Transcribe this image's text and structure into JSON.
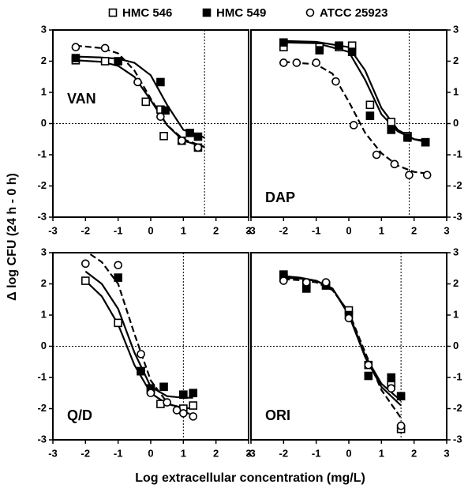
{
  "figure": {
    "xlabel": "Log extracellular concentration (mg/L)",
    "ylabel": "Δ log CFU (24 h - 0 h)"
  },
  "chart_data": [
    {
      "type": "scatter",
      "label": "VAN",
      "xlim": [
        -3,
        3
      ],
      "ylim": [
        -3,
        3
      ],
      "xticks": [
        -3,
        -2,
        -1,
        0,
        1,
        2,
        3
      ],
      "yticks": [
        -3,
        -2,
        -1,
        0,
        1,
        2,
        3
      ],
      "hline": 0,
      "vline": 1.65,
      "series": [
        {
          "name": "HMC 546",
          "marker": "open-square",
          "color": "#000000",
          "dashed": false,
          "x": [
            -2.3,
            -1.4,
            -0.15,
            0.3,
            0.4,
            0.95,
            1.45
          ],
          "values": [
            2.03,
            2.0,
            0.7,
            0.45,
            -0.4,
            -0.55,
            -0.77
          ],
          "fit_x": [
            -2.3,
            -1.5,
            -1,
            -0.5,
            0,
            0.5,
            1,
            1.65
          ],
          "fit_values": [
            2.03,
            1.98,
            1.85,
            1.5,
            0.75,
            -0.05,
            -0.55,
            -0.75
          ]
        },
        {
          "name": "HMC 549",
          "marker": "filled-square",
          "color": "#000000",
          "dashed": false,
          "x": [
            -2.3,
            -1,
            0.3,
            0.45,
            1.2,
            1.45
          ],
          "values": [
            2.1,
            2.0,
            1.33,
            0.42,
            -0.3,
            -0.42
          ],
          "fit_x": [
            -2.3,
            -1.5,
            -1,
            -0.5,
            0,
            0.5,
            1,
            1.65
          ],
          "fit_values": [
            2.15,
            2.12,
            2.08,
            1.95,
            1.55,
            0.6,
            -0.2,
            -0.45
          ]
        },
        {
          "name": "ATCC 25923",
          "marker": "open-circle",
          "color": "#000000",
          "dashed": true,
          "x": [
            -2.3,
            -1.4,
            -0.4,
            0.3,
            0.95,
            1.45
          ],
          "values": [
            2.45,
            2.42,
            1.33,
            0.22,
            -0.55,
            -0.77
          ],
          "fit_x": [
            -2.3,
            -1.5,
            -1,
            -0.5,
            0,
            0.5,
            1,
            1.65
          ],
          "fit_values": [
            2.5,
            2.42,
            2.25,
            1.7,
            0.8,
            -0.05,
            -0.5,
            -0.75
          ]
        }
      ]
    },
    {
      "type": "scatter",
      "label": "DAP",
      "xlim": [
        -3,
        3
      ],
      "ylim": [
        -3,
        3
      ],
      "xticks": [
        -3,
        -2,
        -1,
        0,
        1,
        2,
        3
      ],
      "yticks": [
        -3,
        -2,
        -1,
        0,
        1,
        2,
        3
      ],
      "hline": 0,
      "vline": 1.85,
      "series": [
        {
          "name": "HMC 546",
          "marker": "open-square",
          "color": "#000000",
          "dashed": false,
          "x": [
            -2,
            -0.9,
            -0.3,
            0.1,
            0.65,
            1.3,
            1.8,
            2.35
          ],
          "values": [
            2.45,
            2.45,
            2.45,
            2.5,
            0.6,
            0.05,
            -0.4,
            -0.6
          ],
          "fit_x": [
            -2,
            -1,
            0,
            0.5,
            1,
            1.5,
            2,
            2.4
          ],
          "fit_values": [
            2.6,
            2.58,
            2.3,
            1.4,
            0.3,
            -0.25,
            -0.5,
            -0.55
          ]
        },
        {
          "name": "HMC 549",
          "marker": "filled-square",
          "color": "#000000",
          "dashed": false,
          "x": [
            -2,
            -0.9,
            -0.3,
            0.1,
            0.65,
            1.3,
            1.8,
            2.35
          ],
          "values": [
            2.6,
            2.35,
            2.5,
            2.3,
            0.25,
            -0.2,
            -0.45,
            -0.6
          ],
          "fit_x": [
            -2,
            -1,
            0,
            0.5,
            1,
            1.5,
            2,
            2.4
          ],
          "fit_values": [
            2.65,
            2.62,
            2.45,
            1.7,
            0.5,
            -0.2,
            -0.5,
            -0.6
          ]
        },
        {
          "name": "ATCC 25923",
          "marker": "open-circle",
          "color": "#000000",
          "dashed": true,
          "x": [
            -2,
            -1.6,
            -1,
            -0.4,
            0.15,
            0.85,
            1.4,
            1.85,
            2.4
          ],
          "values": [
            1.95,
            1.95,
            1.95,
            1.35,
            -0.05,
            -1.0,
            -1.3,
            -1.65,
            -1.65
          ],
          "fit_x": [
            -2,
            -1,
            -0.5,
            0,
            0.5,
            1,
            1.5,
            2,
            2.4
          ],
          "fit_values": [
            1.98,
            1.9,
            1.6,
            0.7,
            -0.3,
            -0.95,
            -1.35,
            -1.55,
            -1.6
          ]
        }
      ]
    },
    {
      "type": "scatter",
      "label": "Q/D",
      "xlim": [
        -3,
        3
      ],
      "ylim": [
        -3,
        3
      ],
      "xticks": [
        -3,
        -2,
        -1,
        0,
        1,
        2,
        3
      ],
      "yticks": [
        -3,
        -2,
        -1,
        0,
        1,
        2,
        3
      ],
      "hline": 0,
      "vline": 1.0,
      "series": [
        {
          "name": "HMC 546",
          "marker": "open-square",
          "color": "#000000",
          "dashed": false,
          "x": [
            -2,
            -1,
            -0.3,
            0,
            0.3,
            1,
            1.3
          ],
          "values": [
            2.1,
            0.75,
            -0.8,
            -1.4,
            -1.85,
            -2.0,
            -1.9
          ],
          "fit_x": [
            -2,
            -1.5,
            -1,
            -0.5,
            0,
            0.5,
            1,
            1.3
          ],
          "fit_values": [
            2.1,
            1.6,
            0.7,
            -0.6,
            -1.5,
            -1.85,
            -1.97,
            -2.0
          ]
        },
        {
          "name": "HMC 549",
          "marker": "filled-square",
          "color": "#000000",
          "dashed": false,
          "x": [
            -1,
            -0.3,
            0,
            0.4,
            1,
            1.3
          ],
          "values": [
            2.2,
            -0.8,
            -1.35,
            -1.3,
            -1.55,
            -1.5
          ],
          "fit_x": [
            -2,
            -1.5,
            -1,
            -0.5,
            0,
            0.5,
            1,
            1.3
          ],
          "fit_values": [
            2.4,
            2.0,
            1.2,
            -0.2,
            -1.3,
            -1.6,
            -1.65,
            -1.65
          ]
        },
        {
          "name": "ATCC 25923",
          "marker": "open-circle",
          "color": "#000000",
          "dashed": true,
          "x": [
            -2,
            -1,
            -0.3,
            0,
            0.5,
            0.8,
            1,
            1.3
          ],
          "values": [
            2.65,
            2.6,
            -0.25,
            -1.5,
            -1.8,
            -2.05,
            -2.15,
            -2.25
          ],
          "fit_x": [
            -1.85,
            -1.5,
            -1,
            -0.5,
            0,
            0.5,
            1,
            1.3
          ],
          "fit_values": [
            2.95,
            2.7,
            2.0,
            0.4,
            -1.1,
            -1.8,
            -2.1,
            -2.2
          ]
        }
      ]
    },
    {
      "type": "scatter",
      "label": "ORI",
      "xlim": [
        -3,
        3
      ],
      "ylim": [
        -3,
        3
      ],
      "xticks": [
        -3,
        -2,
        -1,
        0,
        1,
        2,
        3
      ],
      "yticks": [
        -3,
        -2,
        -1,
        0,
        1,
        2,
        3
      ],
      "hline": 0,
      "vline": 1.6,
      "series": [
        {
          "name": "HMC 546",
          "marker": "open-square",
          "color": "#000000",
          "dashed": false,
          "x": [
            -2,
            -1.3,
            -0.7,
            0,
            0.6,
            1.3,
            1.6
          ],
          "values": [
            2.2,
            2.0,
            1.95,
            1.15,
            -0.6,
            -1.25,
            -2.65
          ],
          "fit_x": [
            -2,
            -1.5,
            -1,
            -0.5,
            0,
            0.5,
            1,
            1.6
          ],
          "fit_values": [
            2.2,
            2.17,
            2.1,
            1.85,
            1.0,
            -0.35,
            -1.3,
            -1.9
          ]
        },
        {
          "name": "HMC 549",
          "marker": "filled-square",
          "color": "#000000",
          "dashed": false,
          "x": [
            -2,
            -1.3,
            -0.7,
            0,
            0.6,
            1.3,
            1.6
          ],
          "values": [
            2.3,
            1.85,
            1.95,
            1.0,
            -0.95,
            -1.0,
            -1.6
          ],
          "fit_x": [
            -2,
            -1.5,
            -1,
            -0.5,
            0,
            0.5,
            1,
            1.6
          ],
          "fit_values": [
            2.25,
            2.2,
            2.1,
            1.85,
            1.05,
            -0.3,
            -1.2,
            -1.75
          ]
        },
        {
          "name": "ATCC 25923",
          "marker": "open-circle",
          "color": "#000000",
          "dashed": true,
          "x": [
            -2,
            -1.3,
            -0.7,
            0,
            0.6,
            1.3,
            1.6
          ],
          "values": [
            2.1,
            2.05,
            2.05,
            0.9,
            -0.6,
            -1.35,
            -2.55
          ],
          "fit_x": [
            -2,
            -1.5,
            -1,
            -0.5,
            0,
            0.5,
            1,
            1.6
          ],
          "fit_values": [
            2.15,
            2.12,
            2.05,
            1.8,
            1.1,
            -0.2,
            -1.4,
            -2.3
          ]
        }
      ]
    }
  ]
}
